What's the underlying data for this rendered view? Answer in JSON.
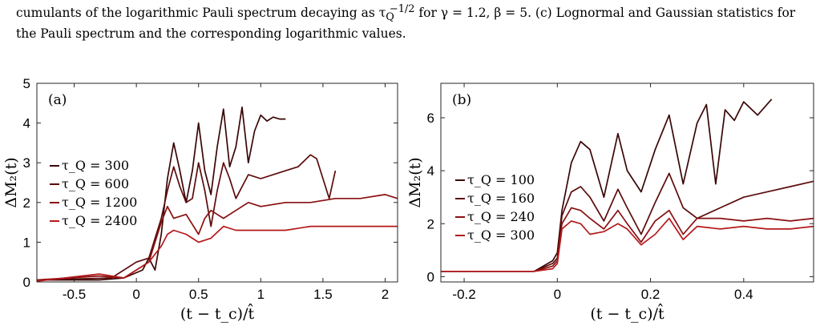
{
  "caption": {
    "line1_a": "cumulants of the logarithmic Pauli spectrum decaying as τ",
    "line1_sub": "Q",
    "line1_sup": "−1/2",
    "line1_b": " for γ = 1.2, β = 5. (c) Lognormal and Gaussian statistics for",
    "line2": "the Pauli spectrum and the corresponding logarithmic values."
  },
  "chart_data": [
    {
      "type": "line",
      "panel_label": "(a)",
      "xlabel": "(t − t_c)/t̂",
      "ylabel": "ΔM₂(t)",
      "xlim": [
        -0.8,
        2.1
      ],
      "ylim": [
        0,
        5
      ],
      "xticks": [
        -0.5,
        0,
        0.5,
        1,
        1.5,
        2
      ],
      "xtick_labels": [
        "-0.5",
        "0",
        "0.5",
        "1",
        "1.5",
        "2"
      ],
      "yticks": [
        0,
        1,
        2,
        3,
        4,
        5
      ],
      "ytick_labels": [
        "0",
        "1",
        "2",
        "3",
        "4",
        "5"
      ],
      "grid": false,
      "legend_position": "left",
      "series": [
        {
          "name": "τ_Q = 300",
          "color": "#3a0606",
          "x": [
            -0.8,
            -0.3,
            -0.1,
            0.05,
            0.1,
            0.15,
            0.2,
            0.25,
            0.3,
            0.35,
            0.4,
            0.45,
            0.5,
            0.55,
            0.6,
            0.65,
            0.7,
            0.75,
            0.8,
            0.85,
            0.9,
            0.95,
            1.0,
            1.05,
            1.1,
            1.15,
            1.2
          ],
          "y": [
            0.05,
            0.05,
            0.1,
            0.3,
            0.6,
            0.3,
            1.2,
            2.6,
            3.5,
            2.8,
            2.0,
            2.8,
            4.0,
            2.8,
            2.2,
            3.4,
            4.35,
            2.9,
            3.4,
            4.4,
            3.0,
            3.8,
            4.2,
            4.05,
            4.15,
            4.1,
            4.1
          ]
        },
        {
          "name": "τ_Q = 600",
          "color": "#5c0b0b",
          "x": [
            -0.8,
            -0.2,
            0.0,
            0.1,
            0.2,
            0.25,
            0.3,
            0.35,
            0.4,
            0.45,
            0.5,
            0.55,
            0.6,
            0.65,
            0.7,
            0.75,
            0.8,
            0.85,
            0.9,
            1.0,
            1.1,
            1.2,
            1.3,
            1.4,
            1.45,
            1.5,
            1.55,
            1.6
          ],
          "y": [
            0.05,
            0.1,
            0.5,
            0.6,
            1.6,
            2.3,
            2.9,
            2.4,
            2.0,
            2.1,
            3.0,
            2.3,
            1.4,
            2.3,
            3.0,
            2.6,
            2.1,
            2.4,
            2.7,
            2.6,
            2.7,
            2.8,
            2.9,
            3.2,
            3.1,
            2.6,
            2.1,
            2.8
          ]
        },
        {
          "name": "τ_Q = 1200",
          "color": "#8a0f10",
          "x": [
            -0.8,
            -0.3,
            -0.1,
            0.1,
            0.15,
            0.2,
            0.25,
            0.3,
            0.4,
            0.5,
            0.55,
            0.6,
            0.7,
            0.8,
            0.9,
            1.0,
            1.2,
            1.4,
            1.6,
            1.8,
            2.0,
            2.1
          ],
          "y": [
            0.05,
            0.15,
            0.1,
            0.5,
            1.0,
            1.5,
            1.9,
            1.6,
            1.7,
            1.2,
            1.6,
            1.8,
            1.6,
            1.8,
            2.0,
            1.9,
            2.0,
            2.0,
            2.1,
            2.1,
            2.2,
            2.1
          ]
        },
        {
          "name": "τ_Q = 2400",
          "color": "#b3191b",
          "x": [
            -0.8,
            -0.3,
            -0.1,
            0.1,
            0.2,
            0.25,
            0.3,
            0.4,
            0.5,
            0.6,
            0.7,
            0.8,
            1.0,
            1.2,
            1.4,
            1.6,
            1.8,
            2.0,
            2.1
          ],
          "y": [
            0.02,
            0.2,
            0.1,
            0.5,
            0.9,
            1.2,
            1.3,
            1.2,
            1.0,
            1.1,
            1.4,
            1.3,
            1.3,
            1.3,
            1.4,
            1.4,
            1.4,
            1.4,
            1.4
          ]
        }
      ]
    },
    {
      "type": "line",
      "panel_label": "(b)",
      "xlabel": "(t − t_c)/t̂",
      "ylabel": "ΔM₂(t)",
      "xlim": [
        -0.25,
        0.55
      ],
      "ylim": [
        -0.2,
        7.3
      ],
      "xticks": [
        -0.2,
        0,
        0.2,
        0.4
      ],
      "xtick_labels": [
        "-0.2",
        "0",
        "0.2",
        "0.4"
      ],
      "yticks": [
        0,
        2,
        4,
        6
      ],
      "ytick_labels": [
        "0",
        "2",
        "4",
        "6"
      ],
      "grid": false,
      "legend_position": "left",
      "series": [
        {
          "name": "τ_Q = 100",
          "color": "#3a0606",
          "x": [
            -0.25,
            -0.05,
            -0.01,
            0.0,
            0.01,
            0.03,
            0.05,
            0.07,
            0.1,
            0.13,
            0.15,
            0.18,
            0.21,
            0.24,
            0.27,
            0.3,
            0.32,
            0.34,
            0.36,
            0.38,
            0.4,
            0.43,
            0.46
          ],
          "y": [
            0.2,
            0.2,
            0.6,
            0.9,
            2.5,
            4.3,
            5.1,
            4.8,
            3.0,
            5.4,
            4.0,
            3.2,
            4.8,
            6.1,
            3.5,
            5.8,
            6.5,
            3.5,
            6.3,
            5.9,
            6.6,
            6.1,
            6.7
          ]
        },
        {
          "name": "τ_Q = 160",
          "color": "#5c0b0b",
          "x": [
            -0.25,
            -0.05,
            -0.01,
            0.0,
            0.01,
            0.03,
            0.05,
            0.07,
            0.1,
            0.13,
            0.15,
            0.18,
            0.21,
            0.24,
            0.27,
            0.3,
            0.35,
            0.4,
            0.45,
            0.5,
            0.55
          ],
          "y": [
            0.2,
            0.2,
            0.5,
            0.7,
            2.3,
            3.2,
            3.4,
            3.0,
            2.1,
            3.3,
            2.6,
            1.6,
            2.8,
            3.9,
            2.6,
            2.2,
            2.6,
            3.0,
            3.2,
            3.4,
            3.6
          ]
        },
        {
          "name": "τ_Q = 240",
          "color": "#8a0f10",
          "x": [
            -0.25,
            -0.05,
            -0.01,
            0.0,
            0.01,
            0.03,
            0.05,
            0.07,
            0.1,
            0.13,
            0.15,
            0.18,
            0.21,
            0.24,
            0.27,
            0.3,
            0.35,
            0.4,
            0.45,
            0.5,
            0.55
          ],
          "y": [
            0.2,
            0.2,
            0.4,
            0.6,
            2.0,
            2.6,
            2.5,
            2.2,
            1.8,
            2.5,
            2.0,
            1.3,
            2.1,
            2.5,
            1.6,
            2.2,
            2.2,
            2.1,
            2.2,
            2.1,
            2.2
          ]
        },
        {
          "name": "τ_Q = 300",
          "color": "#b3191b",
          "x": [
            -0.25,
            -0.05,
            -0.01,
            0.0,
            0.01,
            0.03,
            0.05,
            0.07,
            0.1,
            0.13,
            0.15,
            0.18,
            0.21,
            0.24,
            0.27,
            0.3,
            0.35,
            0.4,
            0.45,
            0.5,
            0.55
          ],
          "y": [
            0.2,
            0.2,
            0.3,
            0.5,
            1.8,
            2.1,
            2.0,
            1.6,
            1.7,
            2.0,
            1.8,
            1.2,
            1.6,
            2.2,
            1.4,
            1.9,
            1.8,
            1.9,
            1.8,
            1.8,
            1.9
          ]
        }
      ]
    }
  ]
}
